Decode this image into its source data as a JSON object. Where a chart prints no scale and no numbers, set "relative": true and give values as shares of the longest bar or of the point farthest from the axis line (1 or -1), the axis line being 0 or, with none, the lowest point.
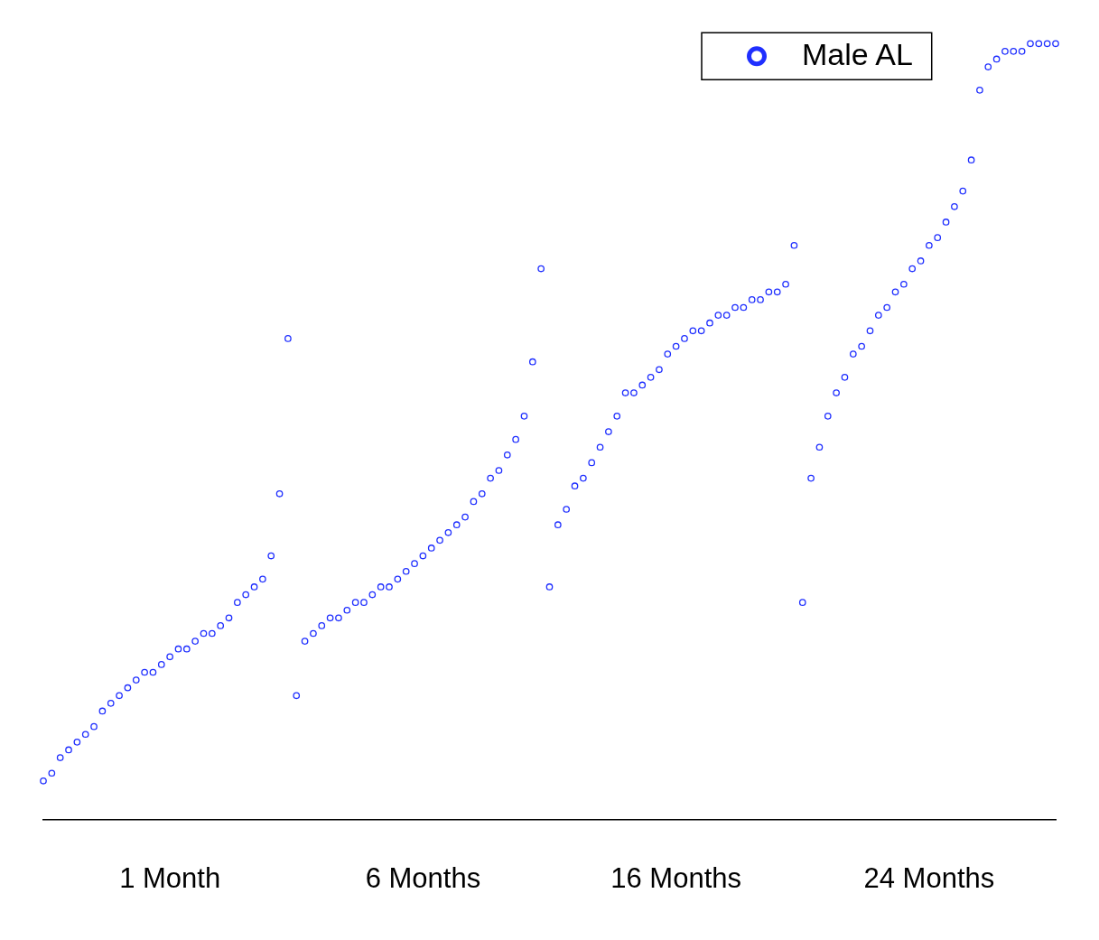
{
  "chart_data": {
    "type": "scatter",
    "relative": true,
    "legend": "top right",
    "marker": "circle",
    "grid": false,
    "categories": [
      null,
      null,
      null,
      null,
      null,
      null,
      null,
      null,
      null,
      null,
      null,
      null,
      null,
      null,
      null,
      "1 Month",
      null,
      null,
      null,
      null,
      null,
      null,
      null,
      null,
      null,
      null,
      null,
      null,
      null,
      null,
      null,
      null,
      null,
      null,
      null,
      null,
      null,
      null,
      null,
      null,
      null,
      null,
      null,
      null,
      null,
      "6 Months",
      null,
      null,
      null,
      null,
      null,
      null,
      null,
      null,
      null,
      null,
      null,
      null,
      null,
      null,
      null,
      null,
      null,
      null,
      null,
      null,
      null,
      null,
      null,
      null,
      null,
      null,
      null,
      null,
      null,
      "16 Months",
      null,
      null,
      null,
      null,
      null,
      null,
      null,
      null,
      null,
      null,
      null,
      null,
      null,
      null,
      null,
      null,
      null,
      null,
      null,
      null,
      null,
      null,
      null,
      null,
      null,
      null,
      null,
      null,
      null,
      "24 Months",
      null,
      null,
      null,
      null,
      null,
      null,
      null,
      null,
      null,
      null,
      null,
      null,
      null,
      null,
      null
    ],
    "series": [
      {
        "name": "Male AL",
        "color": "#1f2fff",
        "values": [
          0.05,
          0.06,
          0.08,
          0.09,
          0.1,
          0.11,
          0.12,
          0.14,
          0.15,
          0.16,
          0.17,
          0.18,
          0.19,
          0.19,
          0.2,
          0.21,
          0.22,
          0.22,
          0.23,
          0.24,
          0.24,
          0.25,
          0.26,
          0.28,
          0.29,
          0.3,
          0.31,
          0.34,
          0.42,
          0.62,
          0.16,
          0.23,
          0.24,
          0.25,
          0.26,
          0.26,
          0.27,
          0.28,
          0.28,
          0.29,
          0.3,
          0.3,
          0.31,
          0.32,
          0.33,
          0.34,
          0.35,
          0.36,
          0.37,
          0.38,
          0.39,
          0.41,
          0.42,
          0.44,
          0.45,
          0.47,
          0.49,
          0.52,
          0.59,
          0.71,
          0.3,
          0.38,
          0.4,
          0.43,
          0.44,
          0.46,
          0.48,
          0.5,
          0.52,
          0.55,
          0.55,
          0.56,
          0.57,
          0.58,
          0.6,
          0.61,
          0.62,
          0.63,
          0.63,
          0.64,
          0.65,
          0.65,
          0.66,
          0.66,
          0.67,
          0.67,
          0.68,
          0.68,
          0.69,
          0.74,
          0.28,
          0.44,
          0.48,
          0.52,
          0.55,
          0.57,
          0.6,
          0.61,
          0.63,
          0.65,
          0.66,
          0.68,
          0.69,
          0.71,
          0.72,
          0.74,
          0.75,
          0.77,
          0.79,
          0.81,
          0.85,
          0.94,
          0.97,
          0.98,
          0.99,
          0.99,
          0.99,
          1.0,
          1.0,
          1.0,
          1.0
        ]
      }
    ]
  }
}
